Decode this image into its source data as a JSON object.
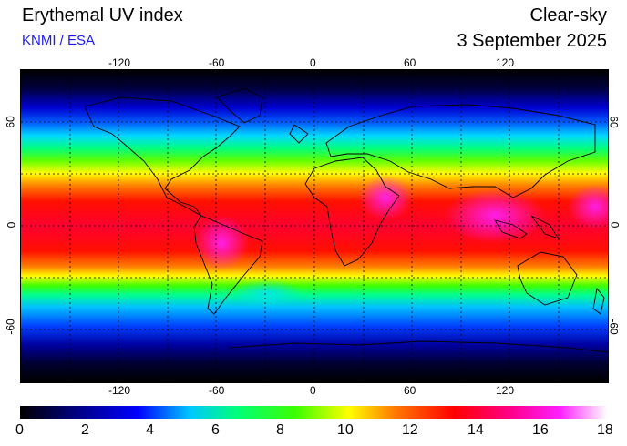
{
  "header": {
    "title": "Erythemal UV index",
    "credit": "KNMI / ESA",
    "mode": "Clear-sky",
    "date": "3 September 2025"
  },
  "map": {
    "lon_ticks": [
      "-120",
      "-60",
      "0",
      "60",
      "120"
    ],
    "lat_ticks": [
      "60",
      "0",
      "-60"
    ]
  },
  "colorbar": {
    "labels": [
      "0",
      "2",
      "4",
      "6",
      "8",
      "10",
      "12",
      "14",
      "16",
      "18"
    ],
    "min": 0,
    "max": 18
  },
  "colors": {
    "credit": "#1a1aff",
    "scale": [
      "#000000",
      "#00007a",
      "#0000ff",
      "#00c8ff",
      "#00ff78",
      "#3cff00",
      "#ffff00",
      "#ff7800",
      "#ff0000",
      "#ff0090",
      "#ff20ff",
      "#ffffff"
    ]
  }
}
